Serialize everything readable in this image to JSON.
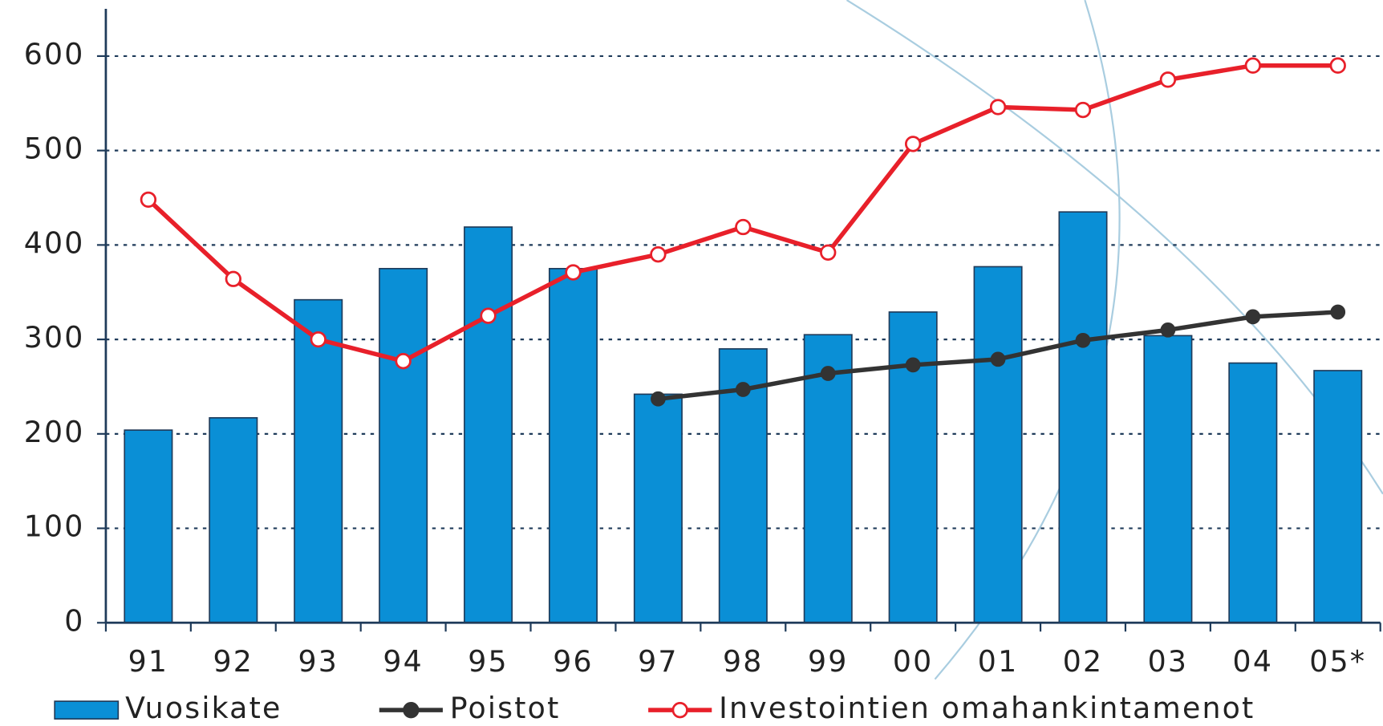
{
  "chart_data": {
    "type": "bar-line",
    "categories": [
      "91",
      "92",
      "93",
      "94",
      "95",
      "96",
      "97",
      "98",
      "99",
      "00",
      "01",
      "02",
      "03",
      "04",
      "05*"
    ],
    "series": [
      {
        "name": "Vuosikate",
        "type": "bar",
        "color": "#0a8fd6",
        "values": [
          204,
          217,
          342,
          375,
          419,
          375,
          242,
          290,
          305,
          329,
          377,
          435,
          304,
          275,
          267
        ]
      },
      {
        "name": "Poistot",
        "type": "line",
        "color": "#333333",
        "values": [
          null,
          null,
          null,
          null,
          null,
          null,
          237,
          247,
          264,
          273,
          279,
          299,
          310,
          324,
          329
        ]
      },
      {
        "name": "Investointien omahankintamenot",
        "type": "line",
        "color": "#e8202a",
        "values": [
          448,
          364,
          300,
          277,
          325,
          371,
          390,
          419,
          392,
          507,
          546,
          543,
          575,
          590,
          590
        ]
      }
    ],
    "ylim": [
      0,
      650
    ],
    "yticks": [
      0,
      100,
      200,
      300,
      400,
      500,
      600
    ],
    "grid": true
  }
}
